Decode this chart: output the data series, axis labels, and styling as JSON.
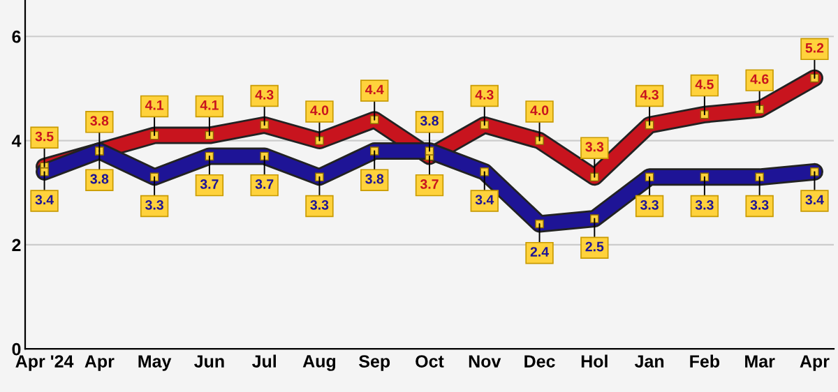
{
  "chart_data": {
    "type": "line",
    "categories": [
      "Apr '24",
      "Apr",
      "May",
      "Jun",
      "Jul",
      "Aug",
      "Sep",
      "Oct",
      "Nov",
      "Dec",
      "Hol",
      "Jan",
      "Feb",
      "Mar",
      "Apr"
    ],
    "series": [
      {
        "color": "#c8141e",
        "values": [
          3.5,
          3.8,
          4.1,
          4.1,
          4.3,
          4.0,
          4.4,
          3.7,
          4.3,
          4.0,
          3.3,
          4.3,
          4.5,
          4.6,
          5.2
        ],
        "value_labels": [
          "3.5",
          "3.8",
          "4.1",
          "4.1",
          "4.3",
          "4.0",
          "4.4",
          "3.7",
          "4.3",
          "4.0",
          "3.3",
          "4.3",
          "4.5",
          "4.6",
          "5.2"
        ]
      },
      {
        "color": "#1e1496",
        "values": [
          3.4,
          3.8,
          3.3,
          3.7,
          3.7,
          3.3,
          3.8,
          3.8,
          3.4,
          2.4,
          2.5,
          3.3,
          3.3,
          3.3,
          3.4
        ],
        "value_labels": [
          "3.4",
          "3.8",
          "3.3",
          "3.7",
          "3.7",
          "3.3",
          "3.8",
          "3.8",
          "3.4",
          "2.4",
          "2.5",
          "3.3",
          "3.3",
          "3.3",
          "3.4"
        ]
      }
    ],
    "ylim": [
      0,
      6.7
    ],
    "yticks": [
      0,
      2,
      4,
      6
    ],
    "grid": "y",
    "marker": "square"
  }
}
